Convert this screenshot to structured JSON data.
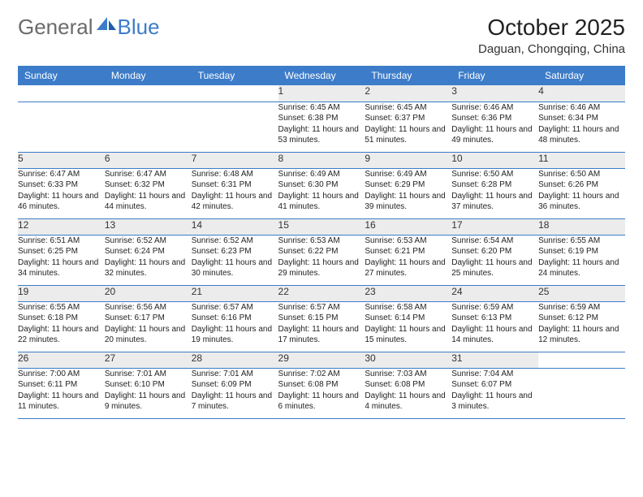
{
  "logo": {
    "part1": "General",
    "part2": "Blue"
  },
  "title": "October 2025",
  "location": "Daguan, Chongqing, China",
  "colors": {
    "header_bg": "#3d7cc9",
    "header_fg": "#ffffff",
    "daynum_bg": "#ececec",
    "border": "#3d7cc9",
    "logo_gray": "#6b6b6b",
    "logo_blue": "#3d7cc9"
  },
  "weekdays": [
    "Sunday",
    "Monday",
    "Tuesday",
    "Wednesday",
    "Thursday",
    "Friday",
    "Saturday"
  ],
  "weeks": [
    [
      null,
      null,
      null,
      {
        "n": "1",
        "sr": "6:45 AM",
        "ss": "6:38 PM",
        "dl": "11 hours and 53 minutes."
      },
      {
        "n": "2",
        "sr": "6:45 AM",
        "ss": "6:37 PM",
        "dl": "11 hours and 51 minutes."
      },
      {
        "n": "3",
        "sr": "6:46 AM",
        "ss": "6:36 PM",
        "dl": "11 hours and 49 minutes."
      },
      {
        "n": "4",
        "sr": "6:46 AM",
        "ss": "6:34 PM",
        "dl": "11 hours and 48 minutes."
      }
    ],
    [
      {
        "n": "5",
        "sr": "6:47 AM",
        "ss": "6:33 PM",
        "dl": "11 hours and 46 minutes."
      },
      {
        "n": "6",
        "sr": "6:47 AM",
        "ss": "6:32 PM",
        "dl": "11 hours and 44 minutes."
      },
      {
        "n": "7",
        "sr": "6:48 AM",
        "ss": "6:31 PM",
        "dl": "11 hours and 42 minutes."
      },
      {
        "n": "8",
        "sr": "6:49 AM",
        "ss": "6:30 PM",
        "dl": "11 hours and 41 minutes."
      },
      {
        "n": "9",
        "sr": "6:49 AM",
        "ss": "6:29 PM",
        "dl": "11 hours and 39 minutes."
      },
      {
        "n": "10",
        "sr": "6:50 AM",
        "ss": "6:28 PM",
        "dl": "11 hours and 37 minutes."
      },
      {
        "n": "11",
        "sr": "6:50 AM",
        "ss": "6:26 PM",
        "dl": "11 hours and 36 minutes."
      }
    ],
    [
      {
        "n": "12",
        "sr": "6:51 AM",
        "ss": "6:25 PM",
        "dl": "11 hours and 34 minutes."
      },
      {
        "n": "13",
        "sr": "6:52 AM",
        "ss": "6:24 PM",
        "dl": "11 hours and 32 minutes."
      },
      {
        "n": "14",
        "sr": "6:52 AM",
        "ss": "6:23 PM",
        "dl": "11 hours and 30 minutes."
      },
      {
        "n": "15",
        "sr": "6:53 AM",
        "ss": "6:22 PM",
        "dl": "11 hours and 29 minutes."
      },
      {
        "n": "16",
        "sr": "6:53 AM",
        "ss": "6:21 PM",
        "dl": "11 hours and 27 minutes."
      },
      {
        "n": "17",
        "sr": "6:54 AM",
        "ss": "6:20 PM",
        "dl": "11 hours and 25 minutes."
      },
      {
        "n": "18",
        "sr": "6:55 AM",
        "ss": "6:19 PM",
        "dl": "11 hours and 24 minutes."
      }
    ],
    [
      {
        "n": "19",
        "sr": "6:55 AM",
        "ss": "6:18 PM",
        "dl": "11 hours and 22 minutes."
      },
      {
        "n": "20",
        "sr": "6:56 AM",
        "ss": "6:17 PM",
        "dl": "11 hours and 20 minutes."
      },
      {
        "n": "21",
        "sr": "6:57 AM",
        "ss": "6:16 PM",
        "dl": "11 hours and 19 minutes."
      },
      {
        "n": "22",
        "sr": "6:57 AM",
        "ss": "6:15 PM",
        "dl": "11 hours and 17 minutes."
      },
      {
        "n": "23",
        "sr": "6:58 AM",
        "ss": "6:14 PM",
        "dl": "11 hours and 15 minutes."
      },
      {
        "n": "24",
        "sr": "6:59 AM",
        "ss": "6:13 PM",
        "dl": "11 hours and 14 minutes."
      },
      {
        "n": "25",
        "sr": "6:59 AM",
        "ss": "6:12 PM",
        "dl": "11 hours and 12 minutes."
      }
    ],
    [
      {
        "n": "26",
        "sr": "7:00 AM",
        "ss": "6:11 PM",
        "dl": "11 hours and 11 minutes."
      },
      {
        "n": "27",
        "sr": "7:01 AM",
        "ss": "6:10 PM",
        "dl": "11 hours and 9 minutes."
      },
      {
        "n": "28",
        "sr": "7:01 AM",
        "ss": "6:09 PM",
        "dl": "11 hours and 7 minutes."
      },
      {
        "n": "29",
        "sr": "7:02 AM",
        "ss": "6:08 PM",
        "dl": "11 hours and 6 minutes."
      },
      {
        "n": "30",
        "sr": "7:03 AM",
        "ss": "6:08 PM",
        "dl": "11 hours and 4 minutes."
      },
      {
        "n": "31",
        "sr": "7:04 AM",
        "ss": "6:07 PM",
        "dl": "11 hours and 3 minutes."
      },
      null
    ]
  ],
  "labels": {
    "sunrise": "Sunrise: ",
    "sunset": "Sunset: ",
    "daylight": "Daylight: "
  }
}
